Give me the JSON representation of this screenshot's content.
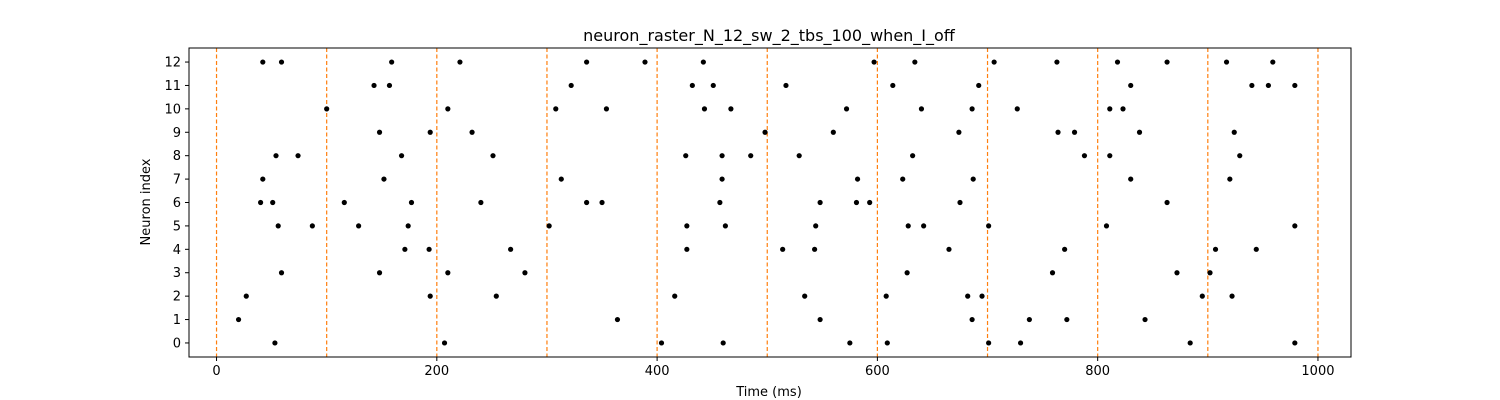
{
  "chart_data": {
    "type": "scatter",
    "title": "neuron_raster_N_12_sw_2_tbs_100_when_I_off",
    "xlabel": "Time (ms)",
    "ylabel": "Neuron index",
    "xlim": [
      -25,
      1030
    ],
    "ylim": [
      -0.6,
      12.6
    ],
    "xticks": [
      0,
      200,
      400,
      600,
      800,
      1000
    ],
    "yticks": [
      0,
      1,
      2,
      3,
      4,
      5,
      6,
      7,
      8,
      9,
      10,
      11,
      12
    ],
    "grid": false,
    "legend": "none",
    "marker_color": "#000000",
    "vline_color": "#ff7f0e",
    "vline_style": "dashed",
    "vlines": [
      0,
      100,
      200,
      300,
      400,
      500,
      600,
      700,
      800,
      900,
      1000
    ],
    "series": [
      {
        "points": [
          [
            42,
            12
          ],
          [
            59,
            12
          ],
          [
            159,
            12
          ],
          [
            221,
            12
          ],
          [
            336,
            12
          ],
          [
            389,
            12
          ],
          [
            442,
            12
          ],
          [
            597,
            12
          ],
          [
            634,
            12
          ],
          [
            706,
            12
          ],
          [
            763,
            12
          ],
          [
            818,
            12
          ],
          [
            863,
            12
          ],
          [
            917,
            12
          ],
          [
            959,
            12
          ],
          [
            143,
            11
          ],
          [
            157,
            11
          ],
          [
            322,
            11
          ],
          [
            432,
            11
          ],
          [
            451,
            11
          ],
          [
            517,
            11
          ],
          [
            614,
            11
          ],
          [
            692,
            11
          ],
          [
            830,
            11
          ],
          [
            940,
            11
          ],
          [
            955,
            11
          ],
          [
            979,
            11
          ],
          [
            100,
            10
          ],
          [
            210,
            10
          ],
          [
            308,
            10
          ],
          [
            354,
            10
          ],
          [
            443,
            10
          ],
          [
            467,
            10
          ],
          [
            572,
            10
          ],
          [
            640,
            10
          ],
          [
            686,
            10
          ],
          [
            727,
            10
          ],
          [
            811,
            10
          ],
          [
            823,
            10
          ],
          [
            148,
            9
          ],
          [
            194,
            9
          ],
          [
            232,
            9
          ],
          [
            498,
            9
          ],
          [
            560,
            9
          ],
          [
            674,
            9
          ],
          [
            764,
            9
          ],
          [
            779,
            9
          ],
          [
            838,
            9
          ],
          [
            924,
            9
          ],
          [
            54,
            8
          ],
          [
            74,
            8
          ],
          [
            168,
            8
          ],
          [
            251,
            8
          ],
          [
            426,
            8
          ],
          [
            459,
            8
          ],
          [
            485,
            8
          ],
          [
            529,
            8
          ],
          [
            632,
            8
          ],
          [
            788,
            8
          ],
          [
            811,
            8
          ],
          [
            929,
            8
          ],
          [
            42,
            7
          ],
          [
            152,
            7
          ],
          [
            313,
            7
          ],
          [
            459,
            7
          ],
          [
            582,
            7
          ],
          [
            623,
            7
          ],
          [
            687,
            7
          ],
          [
            830,
            7
          ],
          [
            920,
            7
          ],
          [
            40,
            6
          ],
          [
            51,
            6
          ],
          [
            116,
            6
          ],
          [
            177,
            6
          ],
          [
            240,
            6
          ],
          [
            336,
            6
          ],
          [
            350,
            6
          ],
          [
            457,
            6
          ],
          [
            548,
            6
          ],
          [
            581,
            6
          ],
          [
            593,
            6
          ],
          [
            675,
            6
          ],
          [
            863,
            6
          ],
          [
            56,
            5
          ],
          [
            87,
            5
          ],
          [
            129,
            5
          ],
          [
            174,
            5
          ],
          [
            302,
            5
          ],
          [
            427,
            5
          ],
          [
            462,
            5
          ],
          [
            544,
            5
          ],
          [
            628,
            5
          ],
          [
            642,
            5
          ],
          [
            701,
            5
          ],
          [
            808,
            5
          ],
          [
            979,
            5
          ],
          [
            171,
            4
          ],
          [
            193,
            4
          ],
          [
            267,
            4
          ],
          [
            427,
            4
          ],
          [
            514,
            4
          ],
          [
            543,
            4
          ],
          [
            665,
            4
          ],
          [
            770,
            4
          ],
          [
            907,
            4
          ],
          [
            944,
            4
          ],
          [
            59,
            3
          ],
          [
            148,
            3
          ],
          [
            210,
            3
          ],
          [
            280,
            3
          ],
          [
            627,
            3
          ],
          [
            759,
            3
          ],
          [
            872,
            3
          ],
          [
            902,
            3
          ],
          [
            27,
            2
          ],
          [
            194,
            2
          ],
          [
            254,
            2
          ],
          [
            416,
            2
          ],
          [
            534,
            2
          ],
          [
            608,
            2
          ],
          [
            682,
            2
          ],
          [
            695,
            2
          ],
          [
            895,
            2
          ],
          [
            922,
            2
          ],
          [
            20,
            1
          ],
          [
            364,
            1
          ],
          [
            548,
            1
          ],
          [
            686,
            1
          ],
          [
            738,
            1
          ],
          [
            772,
            1
          ],
          [
            843,
            1
          ],
          [
            53,
            0
          ],
          [
            207,
            0
          ],
          [
            404,
            0
          ],
          [
            460,
            0
          ],
          [
            575,
            0
          ],
          [
            609,
            0
          ],
          [
            701,
            0
          ],
          [
            730,
            0
          ],
          [
            884,
            0
          ],
          [
            979,
            0
          ]
        ]
      }
    ]
  }
}
